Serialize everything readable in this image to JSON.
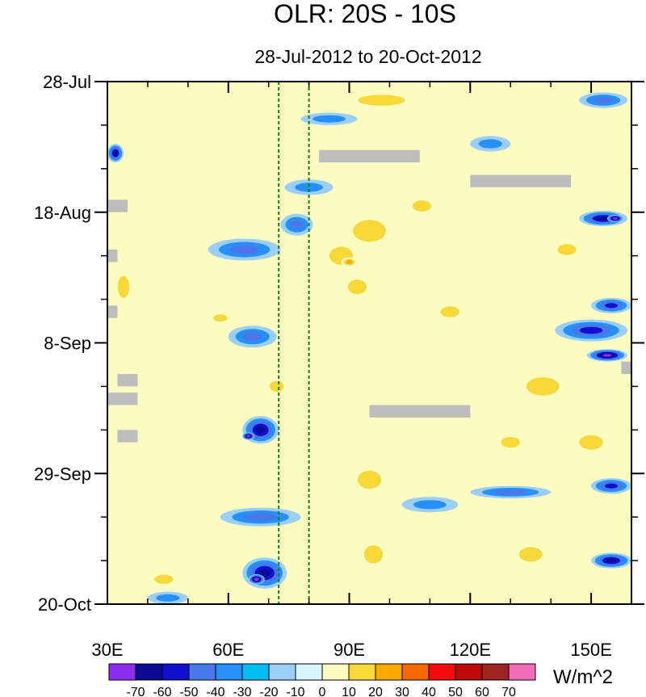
{
  "chart_data": {
    "type": "heatmap",
    "title": "OLR: 20S - 10S",
    "subtitle": "28-Jul-2012 to 20-Oct-2012",
    "x_axis": {
      "range": [
        30,
        160
      ],
      "ticks": [
        {
          "value": 30,
          "label": "30E"
        },
        {
          "value": 60,
          "label": "60E"
        },
        {
          "value": 90,
          "label": "90E"
        },
        {
          "value": 120,
          "label": "120E"
        },
        {
          "value": 150,
          "label": "150E"
        }
      ]
    },
    "y_axis": {
      "range_days": [
        0,
        84
      ],
      "direction": "time increasing downward",
      "ticks": [
        {
          "day": 0,
          "label": "28-Jul"
        },
        {
          "day": 21,
          "label": "18-Aug"
        },
        {
          "day": 42,
          "label": "8-Sep"
        },
        {
          "day": 63,
          "label": "29-Sep"
        },
        {
          "day": 84,
          "label": "20-Oct"
        }
      ]
    },
    "reference_lines_lon": [
      72.5,
      80
    ],
    "missing_data_blocks": [
      {
        "lon": [
          82.5,
          107.5
        ],
        "day": [
          11,
          13
        ]
      },
      {
        "lon": [
          120,
          145
        ],
        "day": [
          15,
          17
        ]
      },
      {
        "lon": [
          95,
          120
        ],
        "day": [
          52,
          54
        ]
      },
      {
        "lon": [
          30,
          35
        ],
        "day": [
          19,
          21
        ]
      },
      {
        "lon": [
          30,
          32.5
        ],
        "day": [
          27,
          29
        ]
      },
      {
        "lon": [
          30,
          32.5
        ],
        "day": [
          36,
          38
        ]
      },
      {
        "lon": [
          32.5,
          37.5
        ],
        "day": [
          47,
          49
        ]
      },
      {
        "lon": [
          30,
          37.5
        ],
        "day": [
          50,
          52
        ]
      },
      {
        "lon": [
          32.5,
          37.5
        ],
        "day": [
          56,
          58
        ]
      },
      {
        "lon": [
          157.5,
          160
        ],
        "day": [
          45,
          47
        ]
      }
    ],
    "anomaly_features": [
      {
        "lon": 32,
        "day": 11.5,
        "w": 4,
        "h": 3,
        "value": -50
      },
      {
        "lon": 64,
        "day": 27,
        "w": 18,
        "h": 3.5,
        "value": -30
      },
      {
        "lon": 77,
        "day": 23,
        "w": 8,
        "h": 3.5,
        "value": -30
      },
      {
        "lon": 80,
        "day": 17,
        "w": 12,
        "h": 2.5,
        "value": -20
      },
      {
        "lon": 85,
        "day": 6,
        "w": 14,
        "h": 2,
        "value": -20
      },
      {
        "lon": 66,
        "day": 41,
        "w": 12,
        "h": 3.5,
        "value": -30
      },
      {
        "lon": 68,
        "day": 56,
        "w": 9,
        "h": 4.5,
        "value": -50
      },
      {
        "lon": 65,
        "day": 57,
        "w": 3,
        "h": 1.2,
        "value": -70
      },
      {
        "lon": 68,
        "day": 70,
        "w": 20,
        "h": 3,
        "value": -30
      },
      {
        "lon": 69,
        "day": 79,
        "w": 11,
        "h": 5,
        "value": -50
      },
      {
        "lon": 67,
        "day": 80,
        "w": 4,
        "h": 1.6,
        "value": -70
      },
      {
        "lon": 150,
        "day": 40,
        "w": 18,
        "h": 3.5,
        "value": -40
      },
      {
        "lon": 154,
        "day": 44,
        "w": 10,
        "h": 2,
        "value": -60
      },
      {
        "lon": 153,
        "day": 22,
        "w": 12,
        "h": 2.5,
        "value": -50
      },
      {
        "lon": 156,
        "day": 22,
        "w": 4,
        "h": 1.2,
        "value": -70
      },
      {
        "lon": 155,
        "day": 36,
        "w": 10,
        "h": 2.5,
        "value": -40
      },
      {
        "lon": 153,
        "day": 3,
        "w": 12,
        "h": 2.5,
        "value": -30
      },
      {
        "lon": 155,
        "day": 65,
        "w": 10,
        "h": 2.5,
        "value": -40
      },
      {
        "lon": 130,
        "day": 66,
        "w": 20,
        "h": 2,
        "value": -30
      },
      {
        "lon": 155,
        "day": 77,
        "w": 10,
        "h": 2.5,
        "value": -50
      },
      {
        "lon": 125,
        "day": 10,
        "w": 10,
        "h": 2.5,
        "value": -20
      },
      {
        "lon": 110,
        "day": 68,
        "w": 14,
        "h": 2.5,
        "value": -20
      },
      {
        "lon": 45,
        "day": 83,
        "w": 10,
        "h": 2,
        "value": -20
      },
      {
        "lon": 95,
        "day": 24,
        "w": 14,
        "h": 6,
        "value": 20
      },
      {
        "lon": 88,
        "day": 28,
        "w": 10,
        "h": 5,
        "value": 20
      },
      {
        "lon": 90,
        "day": 29,
        "w": 4,
        "h": 1.5,
        "value": 30
      },
      {
        "lon": 98,
        "day": 3,
        "w": 20,
        "h": 3,
        "value": 20
      },
      {
        "lon": 92,
        "day": 33,
        "w": 8,
        "h": 4,
        "value": 20
      },
      {
        "lon": 95,
        "day": 64,
        "w": 10,
        "h": 5,
        "value": 20
      },
      {
        "lon": 96,
        "day": 76,
        "w": 8,
        "h": 5,
        "value": 20
      },
      {
        "lon": 138,
        "day": 49,
        "w": 14,
        "h": 5,
        "value": 20
      },
      {
        "lon": 135,
        "day": 76,
        "w": 10,
        "h": 4,
        "value": 20
      },
      {
        "lon": 130,
        "day": 58,
        "w": 8,
        "h": 3,
        "value": 20
      },
      {
        "lon": 150,
        "day": 58,
        "w": 10,
        "h": 4,
        "value": 20
      },
      {
        "lon": 72,
        "day": 49,
        "w": 6,
        "h": 3,
        "value": 20
      },
      {
        "lon": 58,
        "day": 38,
        "w": 6,
        "h": 2,
        "value": 20
      },
      {
        "lon": 115,
        "day": 37,
        "w": 8,
        "h": 3,
        "value": 20
      },
      {
        "lon": 108,
        "day": 20,
        "w": 8,
        "h": 3,
        "value": 20
      },
      {
        "lon": 34,
        "day": 33,
        "w": 5,
        "h": 6,
        "value": 20
      },
      {
        "lon": 44,
        "day": 80,
        "w": 8,
        "h": 2.5,
        "value": 20
      },
      {
        "lon": 144,
        "day": 27,
        "w": 8,
        "h": 3,
        "value": 20
      }
    ],
    "colorbar": {
      "labels": [
        "-70",
        "-60",
        "-50",
        "-40",
        "-30",
        "-20",
        "-10",
        "0",
        "10",
        "20",
        "30",
        "40",
        "50",
        "60",
        "70"
      ],
      "colors": [
        "#8c2cf0",
        "#0c0c96",
        "#1010d0",
        "#4878e8",
        "#2590f8",
        "#00bff0",
        "#9ccff8",
        "#d4f6fc",
        "#fcfcc0",
        "#f8d838",
        "#f8a800",
        "#f86800",
        "#f40c0c",
        "#c00808",
        "#a02424",
        "#f46cb8"
      ],
      "unit": "W/m^2"
    }
  }
}
